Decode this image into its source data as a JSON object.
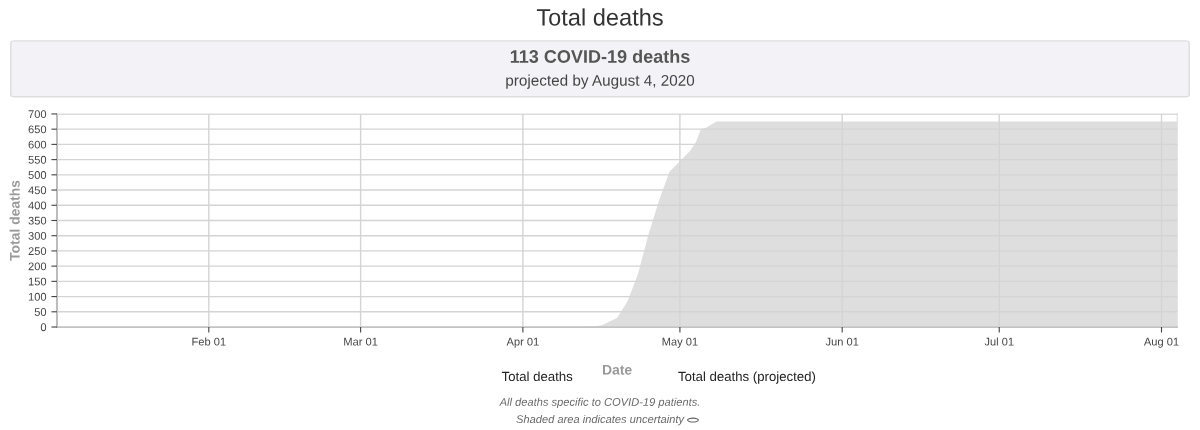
{
  "chart_data": {
    "type": "area",
    "title": "Total deaths",
    "subtitle": "113 COVID-19 deaths\nprojected by August 4, 2020",
    "xlabel": "Date",
    "ylabel": "Total deaths",
    "x": [
      "2020-01-03",
      "2020-04-10",
      "2020-04-14",
      "2020-04-16",
      "2020-04-19",
      "2020-04-21",
      "2020-04-23",
      "2020-04-25",
      "2020-04-27",
      "2020-04-29",
      "2020-05-01",
      "2020-05-03",
      "2020-05-04",
      "2020-05-05",
      "2020-05-06",
      "2020-05-07",
      "2020-05-08",
      "2020-08-04"
    ],
    "series": [
      {
        "color": "#dedede",
        "values": [
          0,
          0,
          2,
          5,
          30,
          85,
          175,
          305,
          415,
          510,
          545,
          580,
          605,
          650,
          655,
          665,
          675,
          675
        ]
      }
    ],
    "xlim": [
      "2020-01-03",
      "2020-08-04"
    ],
    "xticks": [
      {
        "value": "2020-02-01",
        "label": "Feb 01"
      },
      {
        "value": "2020-03-01",
        "label": "Mar 01"
      },
      {
        "value": "2020-04-01",
        "label": "Apr 01"
      },
      {
        "value": "2020-05-01",
        "label": "May 01"
      },
      {
        "value": "2020-06-01",
        "label": "Jun 01"
      },
      {
        "value": "2020-07-01",
        "label": "Jul 01"
      },
      {
        "value": "2020-08-01",
        "label": "Aug 01"
      }
    ],
    "ylim": [
      0,
      700
    ],
    "yticks": [
      0,
      50,
      100,
      150,
      200,
      250,
      300,
      350,
      400,
      450,
      500,
      550,
      600,
      650,
      700
    ],
    "grid": true,
    "annotations": [
      "Total deaths",
      "Total deaths (projected)",
      "All deaths specific to COVID-19 patients.",
      "Shaded area indicates uncertainty"
    ]
  }
}
